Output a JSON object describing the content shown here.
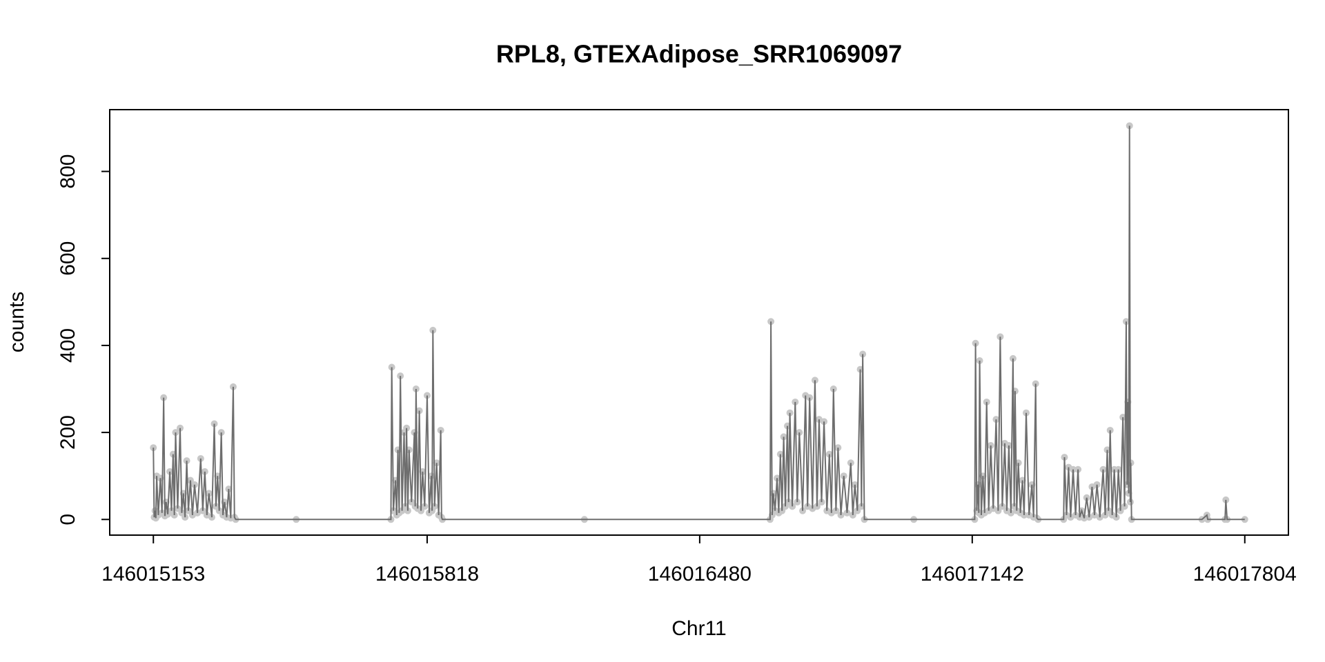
{
  "chart_data": {
    "type": "line",
    "title": "RPL8, GTEXAdipose_SRR1069097",
    "x_label": "Chr11",
    "y_label": "counts",
    "line_color": "#6e6e6e",
    "point_color": "#c8c8c8",
    "xlim": [
      146015047,
      146017910
    ],
    "ylim": [
      -36,
      942
    ],
    "xticks": [
      146015153,
      146015818,
      146016480,
      146017142,
      146017804
    ],
    "yticks": [
      0,
      200,
      400,
      600,
      800
    ],
    "x": [
      146015153,
      146015155,
      146015157,
      146015159,
      146015161,
      146015165,
      146015170,
      146015174,
      146015178,
      146015181,
      146015184,
      146015188,
      146015193,
      146015197,
      146015201,
      146015204,
      146015207,
      146015212,
      146015218,
      146015222,
      146015226,
      146015230,
      146015234,
      146015238,
      146015243,
      146015248,
      146015253,
      146015260,
      146015268,
      146015273,
      146015278,
      146015283,
      146015288,
      146015295,
      146015301,
      146015305,
      146015309,
      146015313,
      146015318,
      146015322,
      146015326,
      146015331,
      146015336,
      146015341,
      146015347,
      146015350,
      146015353,
      146015500,
      146015730,
      146015732,
      146015736,
      146015741,
      146015744,
      146015747,
      146015750,
      146015753,
      146015757,
      146015762,
      146015765,
      146015768,
      146015771,
      146015774,
      146015780,
      146015787,
      146015789,
      146015791,
      146015795,
      146015799,
      146015803,
      146015807,
      146015812,
      146015818,
      146015823,
      146015828,
      146015830,
      146015832,
      146015836,
      146015841,
      146015846,
      146015851,
      146015853,
      146015855,
      146016200,
      146016651,
      146016653,
      146016656,
      146016659,
      146016663,
      146016668,
      146016672,
      146016676,
      146016680,
      146016684,
      146016688,
      146016693,
      146016696,
      146016699,
      146016705,
      146016712,
      146016717,
      146016722,
      146016730,
      146016737,
      146016742,
      146016747,
      146016754,
      146016760,
      146016765,
      146016770,
      146016776,
      146016782,
      146016789,
      146016795,
      146016800,
      146016805,
      146016811,
      146016816,
      146016823,
      146016830,
      146016838,
      146016847,
      146016852,
      146016857,
      146016863,
      146016870,
      146016873,
      146016876,
      146016880,
      146017000,
      146017148,
      146017150,
      146017153,
      146017156,
      146017158,
      146017160,
      146017164,
      146017168,
      146017172,
      146017177,
      146017182,
      146017187,
      146017193,
      146017200,
      146017205,
      146017210,
      146017215,
      146017221,
      146017226,
      146017231,
      146017236,
      146017241,
      146017244,
      146017246,
      146017250,
      146017254,
      146017259,
      146017264,
      146017268,
      146017273,
      146017280,
      146017287,
      146017291,
      146017296,
      146017299,
      146017302,
      146017364,
      146017366,
      146017371,
      146017376,
      146017381,
      146017387,
      146017393,
      146017399,
      146017403,
      146017408,
      146017414,
      146017420,
      146017426,
      146017433,
      146017439,
      146017445,
      146017452,
      146017460,
      146017465,
      146017470,
      146017473,
      146017477,
      146017482,
      146017487,
      146017492,
      146017497,
      146017502,
      146017508,
      146017512,
      146017516,
      146017518,
      146017520,
      146017522,
      146017524,
      146017526,
      146017527,
      146017529,
      146017700,
      146017712,
      146017714,
      146017756,
      146017758,
      146017761,
      146017804
    ],
    "values": [
      165,
      5,
      20,
      3,
      100,
      10,
      95,
      15,
      280,
      8,
      40,
      12,
      110,
      20,
      150,
      10,
      200,
      25,
      210,
      15,
      60,
      5,
      135,
      20,
      90,
      10,
      80,
      15,
      140,
      20,
      110,
      10,
      60,
      5,
      220,
      30,
      100,
      20,
      200,
      10,
      40,
      5,
      70,
      3,
      305,
      5,
      0,
      0,
      0,
      350,
      20,
      90,
      10,
      160,
      15,
      330,
      20,
      200,
      30,
      210,
      20,
      160,
      40,
      200,
      30,
      300,
      25,
      250,
      20,
      110,
      30,
      285,
      15,
      100,
      20,
      435,
      30,
      130,
      10,
      205,
      5,
      0,
      0,
      0,
      455,
      10,
      60,
      20,
      95,
      15,
      150,
      20,
      190,
      30,
      215,
      40,
      245,
      30,
      270,
      40,
      200,
      20,
      285,
      30,
      280,
      25,
      320,
      30,
      230,
      40,
      225,
      20,
      150,
      15,
      300,
      20,
      165,
      10,
      100,
      15,
      130,
      10,
      80,
      20,
      345,
      30,
      380,
      0,
      0,
      0,
      405,
      20,
      80,
      15,
      365,
      10,
      100,
      15,
      270,
      20,
      170,
      25,
      230,
      20,
      420,
      30,
      175,
      20,
      170,
      15,
      370,
      30,
      295,
      20,
      130,
      15,
      90,
      10,
      245,
      10,
      80,
      5,
      312,
      3,
      0,
      0,
      143,
      10,
      120,
      5,
      115,
      10,
      115,
      5,
      20,
      3,
      50,
      5,
      75,
      10,
      80,
      5,
      115,
      10,
      160,
      20,
      205,
      10,
      115,
      5,
      115,
      20,
      235,
      30,
      455,
      80,
      270,
      60,
      905,
      40,
      130,
      0,
      0,
      10,
      0,
      0,
      45,
      0,
      0
    ]
  }
}
